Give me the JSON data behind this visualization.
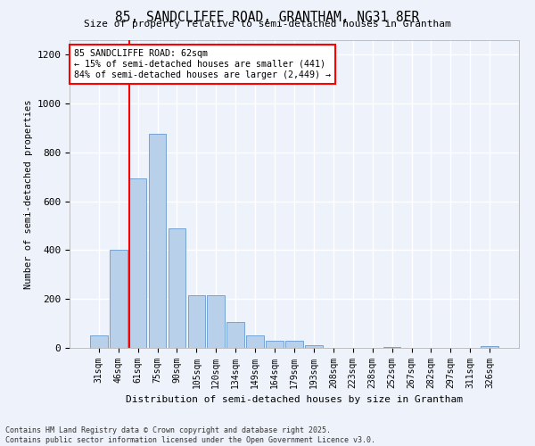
{
  "title": "85, SANDCLIFFE ROAD, GRANTHAM, NG31 8ER",
  "subtitle": "Size of property relative to semi-detached houses in Grantham",
  "xlabel": "Distribution of semi-detached houses by size in Grantham",
  "ylabel": "Number of semi-detached properties",
  "categories": [
    "31sqm",
    "46sqm",
    "61sqm",
    "75sqm",
    "90sqm",
    "105sqm",
    "120sqm",
    "134sqm",
    "149sqm",
    "164sqm",
    "179sqm",
    "193sqm",
    "208sqm",
    "223sqm",
    "238sqm",
    "252sqm",
    "267sqm",
    "282sqm",
    "297sqm",
    "311sqm",
    "326sqm"
  ],
  "values": [
    50,
    400,
    695,
    875,
    490,
    215,
    215,
    105,
    50,
    30,
    28,
    10,
    0,
    0,
    0,
    5,
    0,
    0,
    0,
    0,
    8
  ],
  "bar_color": "#b8d0ea",
  "bar_edge_color": "#6699cc",
  "annotation_title": "85 SANDCLIFFE ROAD: 62sqm",
  "annotation_line1": "← 15% of semi-detached houses are smaller (441)",
  "annotation_line2": "84% of semi-detached houses are larger (2,449) →",
  "footer_line1": "Contains HM Land Registry data © Crown copyright and database right 2025.",
  "footer_line2": "Contains public sector information licensed under the Open Government Licence v3.0.",
  "background_color": "#eef2fa",
  "grid_color": "#ffffff",
  "ylim": [
    0,
    1260
  ],
  "yticks": [
    0,
    200,
    400,
    600,
    800,
    1000,
    1200
  ],
  "red_line_x": 2.0
}
